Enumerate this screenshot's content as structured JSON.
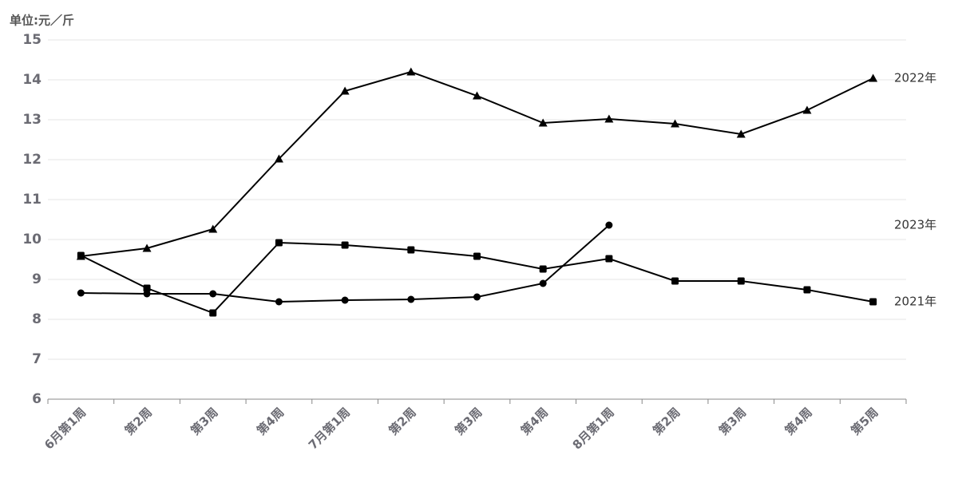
{
  "chart_data": {
    "type": "line",
    "unit_label": "单位:元／斤",
    "categories": [
      "6月第1周",
      "第2周",
      "第3周",
      "第4周",
      "7月第1周",
      "第2周",
      "第3周",
      "第4周",
      "8月第1周",
      "第2周",
      "第3周",
      "第4周",
      "第5周"
    ],
    "series": [
      {
        "name": "2022年",
        "color": "#000000",
        "marker": "triangle",
        "values": [
          9.58,
          9.78,
          10.26,
          12.02,
          13.72,
          14.2,
          13.6,
          12.92,
          13.02,
          12.9,
          12.64,
          13.24,
          14.04
        ]
      },
      {
        "name": "2021年",
        "color": "#000000",
        "marker": "square",
        "values": [
          9.6,
          8.78,
          8.16,
          9.92,
          9.86,
          9.74,
          9.58,
          9.26,
          9.52,
          8.96,
          8.96,
          8.74,
          8.44
        ]
      },
      {
        "name": "2023年",
        "color": "#000000",
        "marker": "circle",
        "values": [
          8.66,
          8.64,
          8.64,
          8.44,
          8.48,
          8.5,
          8.56,
          8.9,
          10.36,
          null,
          null,
          null,
          null
        ]
      }
    ],
    "ylim": [
      6,
      15
    ],
    "yticks": [
      6,
      7,
      8,
      9,
      10,
      11,
      12,
      13,
      14,
      15
    ],
    "grid": true
  }
}
